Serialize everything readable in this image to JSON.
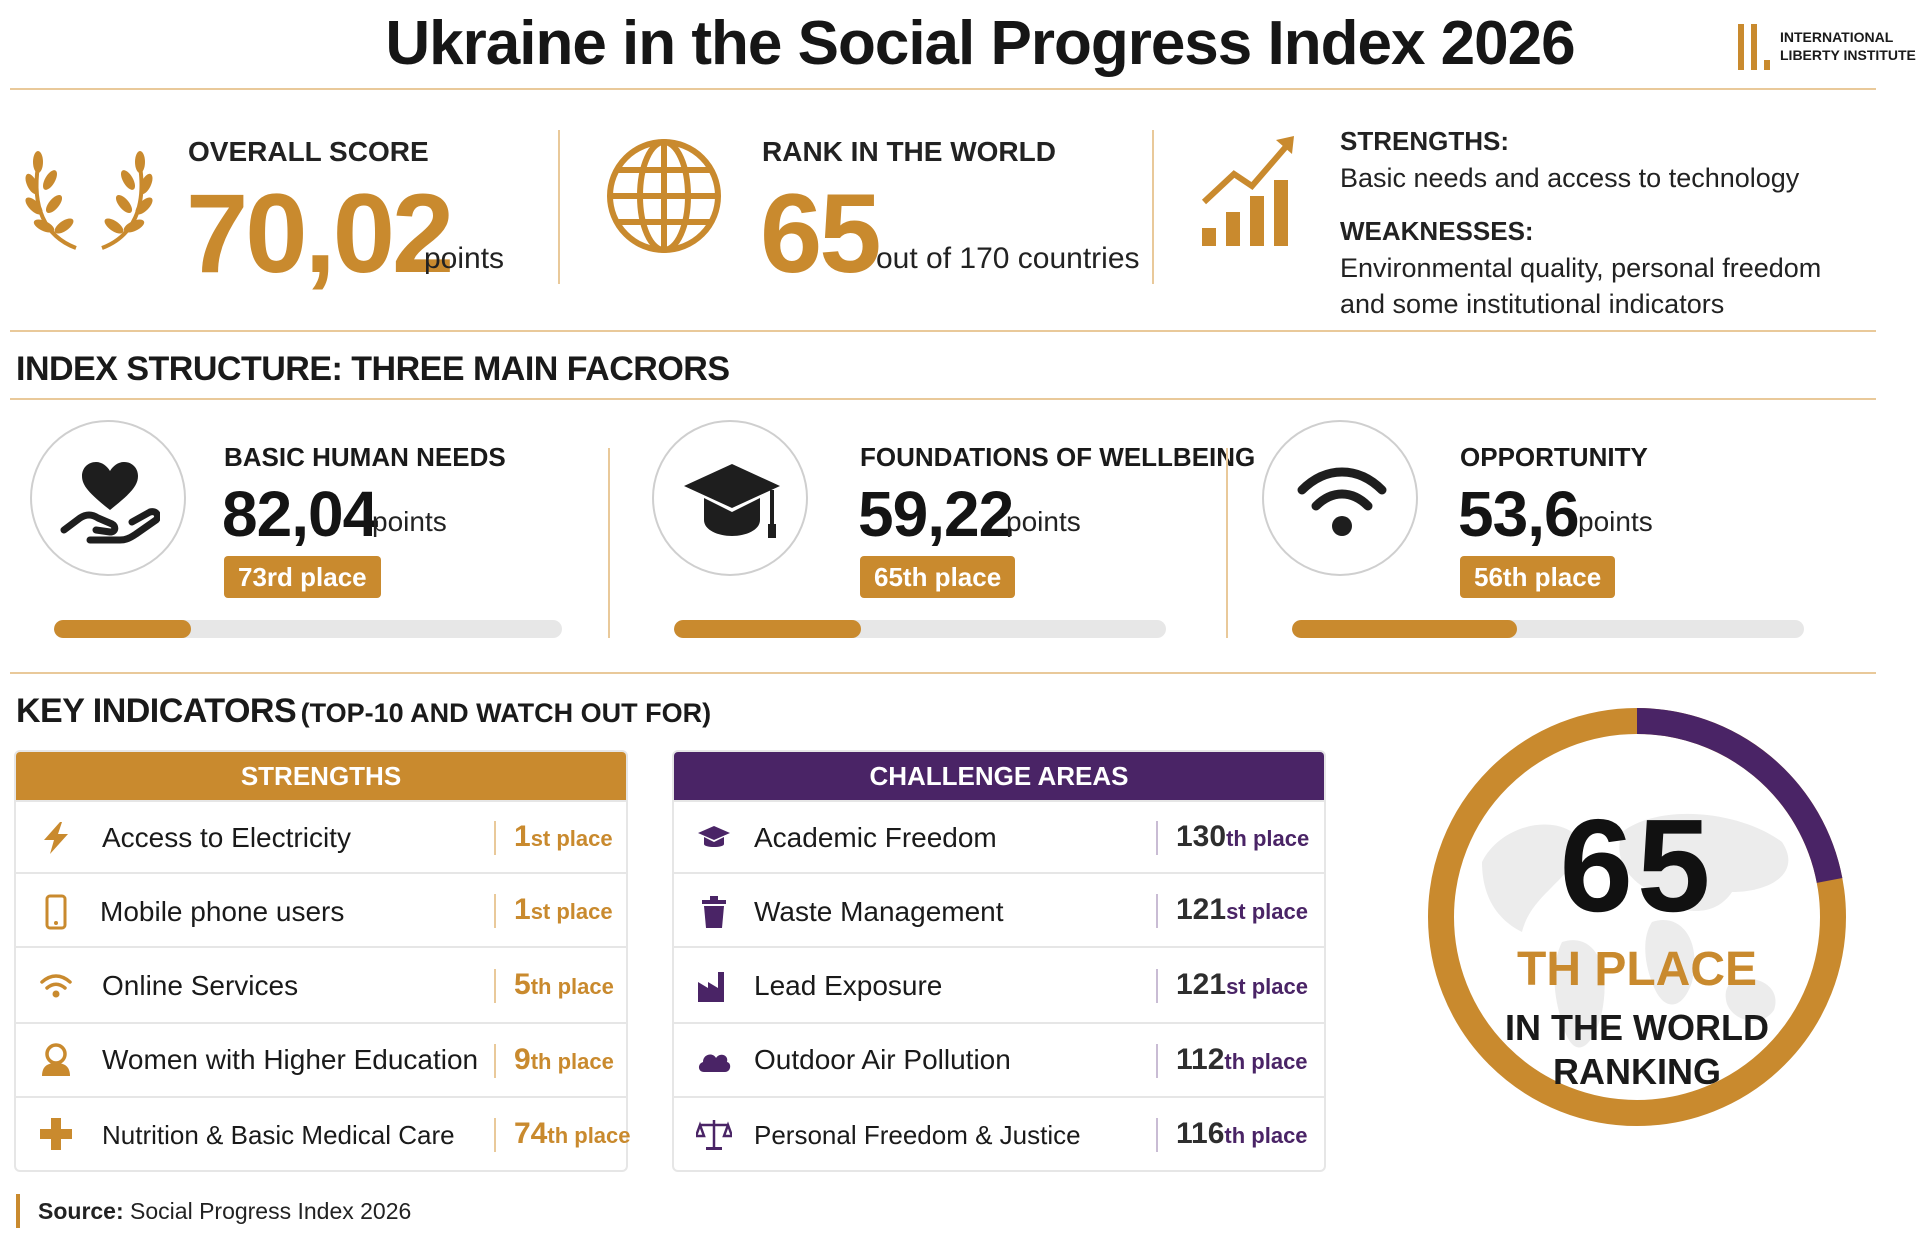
{
  "header": {
    "title": "Ukraine in the Social Progress Index 2026",
    "logo_line1": "INTERNATIONAL",
    "logo_line2": "LIBERTY INSTITUTE"
  },
  "summary": {
    "overall_label": "OVERALL SCORE",
    "overall_value": "70,02",
    "overall_unit": "points",
    "rank_label": "RANK IN THE WORLD",
    "rank_value": "65",
    "rank_unit": "out of 170 countries",
    "strengths_title": "STRENGTHS:",
    "strengths_text": "Basic needs and access to technology",
    "weaknesses_title": "WEAKNESSES:",
    "weaknesses_line1": "Environmental quality, personal freedom",
    "weaknesses_line2": "and some institutional indicators"
  },
  "structure": {
    "heading": "INDEX STRUCTURE: THREE MAIN FACRORS",
    "factors": [
      {
        "label": "BASIC HUMAN NEEDS",
        "score": "82,04",
        "unit": "points",
        "place": "73rd place",
        "progress": 0.27,
        "icon": "heart-hand-icon"
      },
      {
        "label": "FOUNDATIONS OF WELLBEING",
        "score": "59,22",
        "unit": "points",
        "place": "65th place",
        "progress": 0.38,
        "icon": "graduation-cap-icon"
      },
      {
        "label": "OPPORTUNITY",
        "score": "53,6",
        "unit": "points",
        "place": "56th place",
        "progress": 0.44,
        "icon": "wifi-icon"
      }
    ]
  },
  "indicators": {
    "heading": "KEY INDICATORS",
    "heading_sub": "(TOP-10 AND WATCH OUT FOR)",
    "strengths_header": "STRENGTHS",
    "strengths": [
      {
        "name": "Access to Electricity",
        "num": "1",
        "suffix": "st place",
        "icon": "lightning-icon"
      },
      {
        "name": "Mobile phone users",
        "num": "1",
        "suffix": "st place",
        "icon": "mobile-phone-icon"
      },
      {
        "name": "Online Services",
        "num": "5",
        "suffix": "th place",
        "icon": "wifi-icon"
      },
      {
        "name": "Women with Higher Education",
        "num": "9",
        "suffix": "th place",
        "icon": "woman-icon"
      },
      {
        "name": "Nutrition & Basic Medical Care",
        "num": "74",
        "suffix": "th place",
        "icon": "medical-cross-icon"
      }
    ],
    "challenges_header": "CHALLENGE AREAS",
    "challenges": [
      {
        "name": "Academic Freedom",
        "num": "130",
        "suffix": "th place",
        "icon": "graduation-cap-icon"
      },
      {
        "name": "Waste Management",
        "num": "121",
        "suffix": "st place",
        "icon": "trash-can-icon"
      },
      {
        "name": "Lead Exposure",
        "num": "121",
        "suffix": "st place",
        "icon": "factory-icon"
      },
      {
        "name": "Outdoor Air Pollution",
        "num": "112",
        "suffix": "th place",
        "icon": "cloud-icon"
      },
      {
        "name": "Personal Freedom & Justice",
        "num": "116",
        "suffix": "th place",
        "icon": "scales-icon"
      }
    ]
  },
  "ranking_ring": {
    "number": "65",
    "place": "TH PLACE",
    "line1": "IN THE WORLD",
    "line2": "RANKING",
    "highlight_fraction": 0.22
  },
  "source": {
    "label": "Source:",
    "text": "Social Progress Index 2026"
  },
  "colors": {
    "gold": "#c98a2e",
    "purple": "#4a2466",
    "divider": "#e9c99a"
  }
}
